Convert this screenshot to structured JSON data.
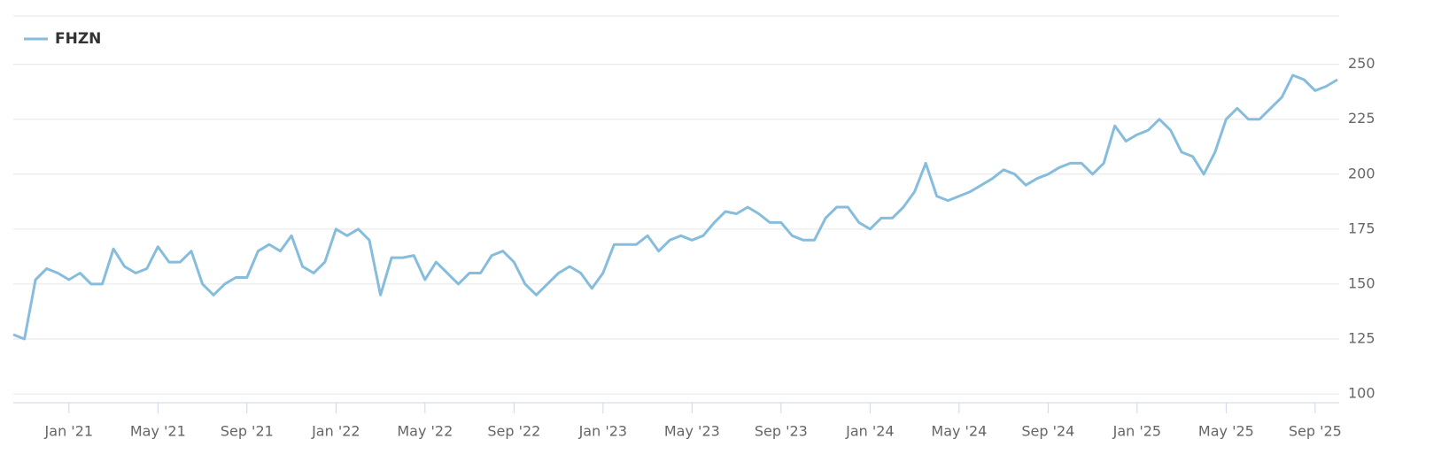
{
  "chart_data": {
    "type": "line",
    "series": [
      {
        "name": "FHZN",
        "color": "#86bddd",
        "values": [
          127,
          125,
          152,
          157,
          155,
          152,
          155,
          150,
          150,
          166,
          158,
          155,
          157,
          167,
          160,
          160,
          165,
          150,
          145,
          150,
          153,
          153,
          165,
          168,
          165,
          172,
          158,
          155,
          160,
          175,
          172,
          175,
          170,
          145,
          162,
          162,
          163,
          152,
          160,
          155,
          150,
          155,
          155,
          163,
          165,
          160,
          150,
          145,
          150,
          155,
          158,
          155,
          148,
          155,
          168,
          168,
          168,
          172,
          165,
          170,
          172,
          170,
          172,
          178,
          183,
          182,
          185,
          182,
          178,
          178,
          172,
          170,
          170,
          180,
          185,
          185,
          178,
          175,
          180,
          180,
          185,
          192,
          205,
          190,
          188,
          190,
          192,
          195,
          198,
          202,
          200,
          195,
          198,
          200,
          203,
          205,
          205,
          200,
          205,
          222,
          215,
          218,
          220,
          225,
          220,
          210,
          208,
          200,
          210,
          225,
          230,
          225,
          225,
          230,
          235,
          245,
          243,
          238,
          240,
          243
        ]
      }
    ],
    "categories": [
      null,
      null,
      null,
      null,
      null,
      "Jan '21",
      null,
      null,
      null,
      null,
      null,
      null,
      null,
      "May '21",
      null,
      null,
      null,
      null,
      null,
      null,
      null,
      "Sep '21",
      null,
      null,
      null,
      null,
      null,
      null,
      null,
      "Jan '22",
      null,
      null,
      null,
      null,
      null,
      null,
      null,
      "May '22",
      null,
      null,
      null,
      null,
      null,
      null,
      null,
      "Sep '22",
      null,
      null,
      null,
      null,
      null,
      null,
      null,
      "Jan '23",
      null,
      null,
      null,
      null,
      null,
      null,
      null,
      "May '23",
      null,
      null,
      null,
      null,
      null,
      null,
      null,
      "Sep '23",
      null,
      null,
      null,
      null,
      null,
      null,
      null,
      "Jan '24",
      null,
      null,
      null,
      null,
      null,
      null,
      null,
      "May '24",
      null,
      null,
      null,
      null,
      null,
      null,
      null,
      "Sep '24",
      null,
      null,
      null,
      null,
      null,
      null,
      null,
      "Jan '25",
      null,
      null,
      null,
      null,
      null,
      null,
      null,
      "May '25",
      null,
      null,
      null,
      null,
      null,
      null,
      null,
      "Sep '25",
      null,
      null
    ],
    "ylim": [
      96,
      272
    ],
    "yticks": [
      100,
      125,
      150,
      175,
      200,
      225,
      250
    ],
    "grid": true
  }
}
